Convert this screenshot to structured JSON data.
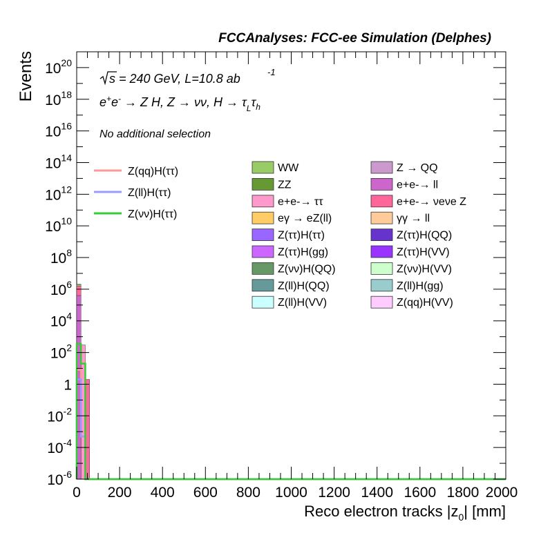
{
  "chart_data": {
    "type": "bar",
    "title": "FCCAnalyses: FCC-ee Simulation (Delphes)",
    "xlabel": "Reco electron tracks |z0| [mm]",
    "ylabel": "Events",
    "xlim": [
      0,
      2000
    ],
    "ylim": [
      1e-06,
      1e+21
    ],
    "yscale": "log",
    "stacked": true,
    "x_ticks": [
      "0",
      "200",
      "400",
      "600",
      "800",
      "1000",
      "1200",
      "1400",
      "1600",
      "1800",
      "2000"
    ],
    "y_ticks": [
      "10^-6",
      "10^-4",
      "10^-2",
      "1",
      "10^2",
      "10^4",
      "10^6",
      "10^8",
      "10^10",
      "10^12",
      "10^14",
      "10^16",
      "10^18",
      "10^20"
    ],
    "annotations": {
      "energy": "√s = 240 GeV, L=10.8 ab -1",
      "process": "e+e- → Z H, Z → νν, H → τL τh",
      "selection": "No additional selection"
    },
    "stack_bins": [
      {
        "x_low": 0,
        "x_high": 20,
        "total": 4000000
      },
      {
        "x_low": 20,
        "x_high": 40,
        "total": 300
      },
      {
        "x_low": 40,
        "x_high": 60,
        "total": 2
      }
    ],
    "stack_segments_bin0": [
      {
        "name": "ee→ll",
        "value": 400000
      },
      {
        "name": "ee→ννZ",
        "value": 1200000
      },
      {
        "name": "WW",
        "value": 400000
      },
      {
        "name": "ZZ",
        "value": 30000
      },
      {
        "name": "Z→QQ",
        "value": 600
      },
      {
        "name": "ee→ττ",
        "value": 300
      },
      {
        "name": "γγ→ll",
        "value": 200
      },
      {
        "name": "Z(ll)H(QQ)",
        "value": 10
      }
    ],
    "signal_lines": [
      {
        "name": "Z(qq)H(ττ)",
        "color": "#ff9999",
        "values": [
          8,
          0.001,
          0
        ]
      },
      {
        "name": "Z(ll)H(ττ)",
        "color": "#9999ff",
        "values": [
          2,
          0.0005,
          0
        ]
      },
      {
        "name": "Z(νν)H(ττ)",
        "color": "#33cc33",
        "values": [
          350,
          20,
          0
        ]
      }
    ],
    "legend": {
      "lines": [
        {
          "label": "Z(qq)H(ττ)",
          "color": "#ff9999"
        },
        {
          "label": "Z(ll)H(ττ)",
          "color": "#9999ff"
        },
        {
          "label": "Z(νν)H(ττ)",
          "color": "#33cc33"
        }
      ],
      "boxes": [
        {
          "label": "WW",
          "color": "#99cc66"
        },
        {
          "label": "Z → QQ",
          "color": "#cc99cc"
        },
        {
          "label": "ZZ",
          "color": "#669933"
        },
        {
          "label": "e+e-→ ll",
          "color": "#cc66cc"
        },
        {
          "label": "e+e-→ ττ",
          "color": "#ff99cc"
        },
        {
          "label": "e+e-→ νeνe Z",
          "color": "#ff6699"
        },
        {
          "label": "eγ → eZ(ll)",
          "color": "#ffcc66"
        },
        {
          "label": "γγ → ll",
          "color": "#ffcc99"
        },
        {
          "label": "Z(ττ)H(ττ)",
          "color": "#9966ff"
        },
        {
          "label": "Z(ττ)H(QQ)",
          "color": "#6633cc"
        },
        {
          "label": "Z(ττ)H(gg)",
          "color": "#cc66ff"
        },
        {
          "label": "Z(ττ)H(VV)",
          "color": "#9933ff"
        },
        {
          "label": "Z(νν)H(QQ)",
          "color": "#669966"
        },
        {
          "label": "Z(νν)H(VV)",
          "color": "#ccffcc"
        },
        {
          "label": "Z(ll)H(QQ)",
          "color": "#669999"
        },
        {
          "label": "Z(ll)H(gg)",
          "color": "#99cccc"
        },
        {
          "label": "Z(ll)H(VV)",
          "color": "#ccffff"
        },
        {
          "label": "Z(qq)H(VV)",
          "color": "#ffccff"
        }
      ]
    }
  }
}
